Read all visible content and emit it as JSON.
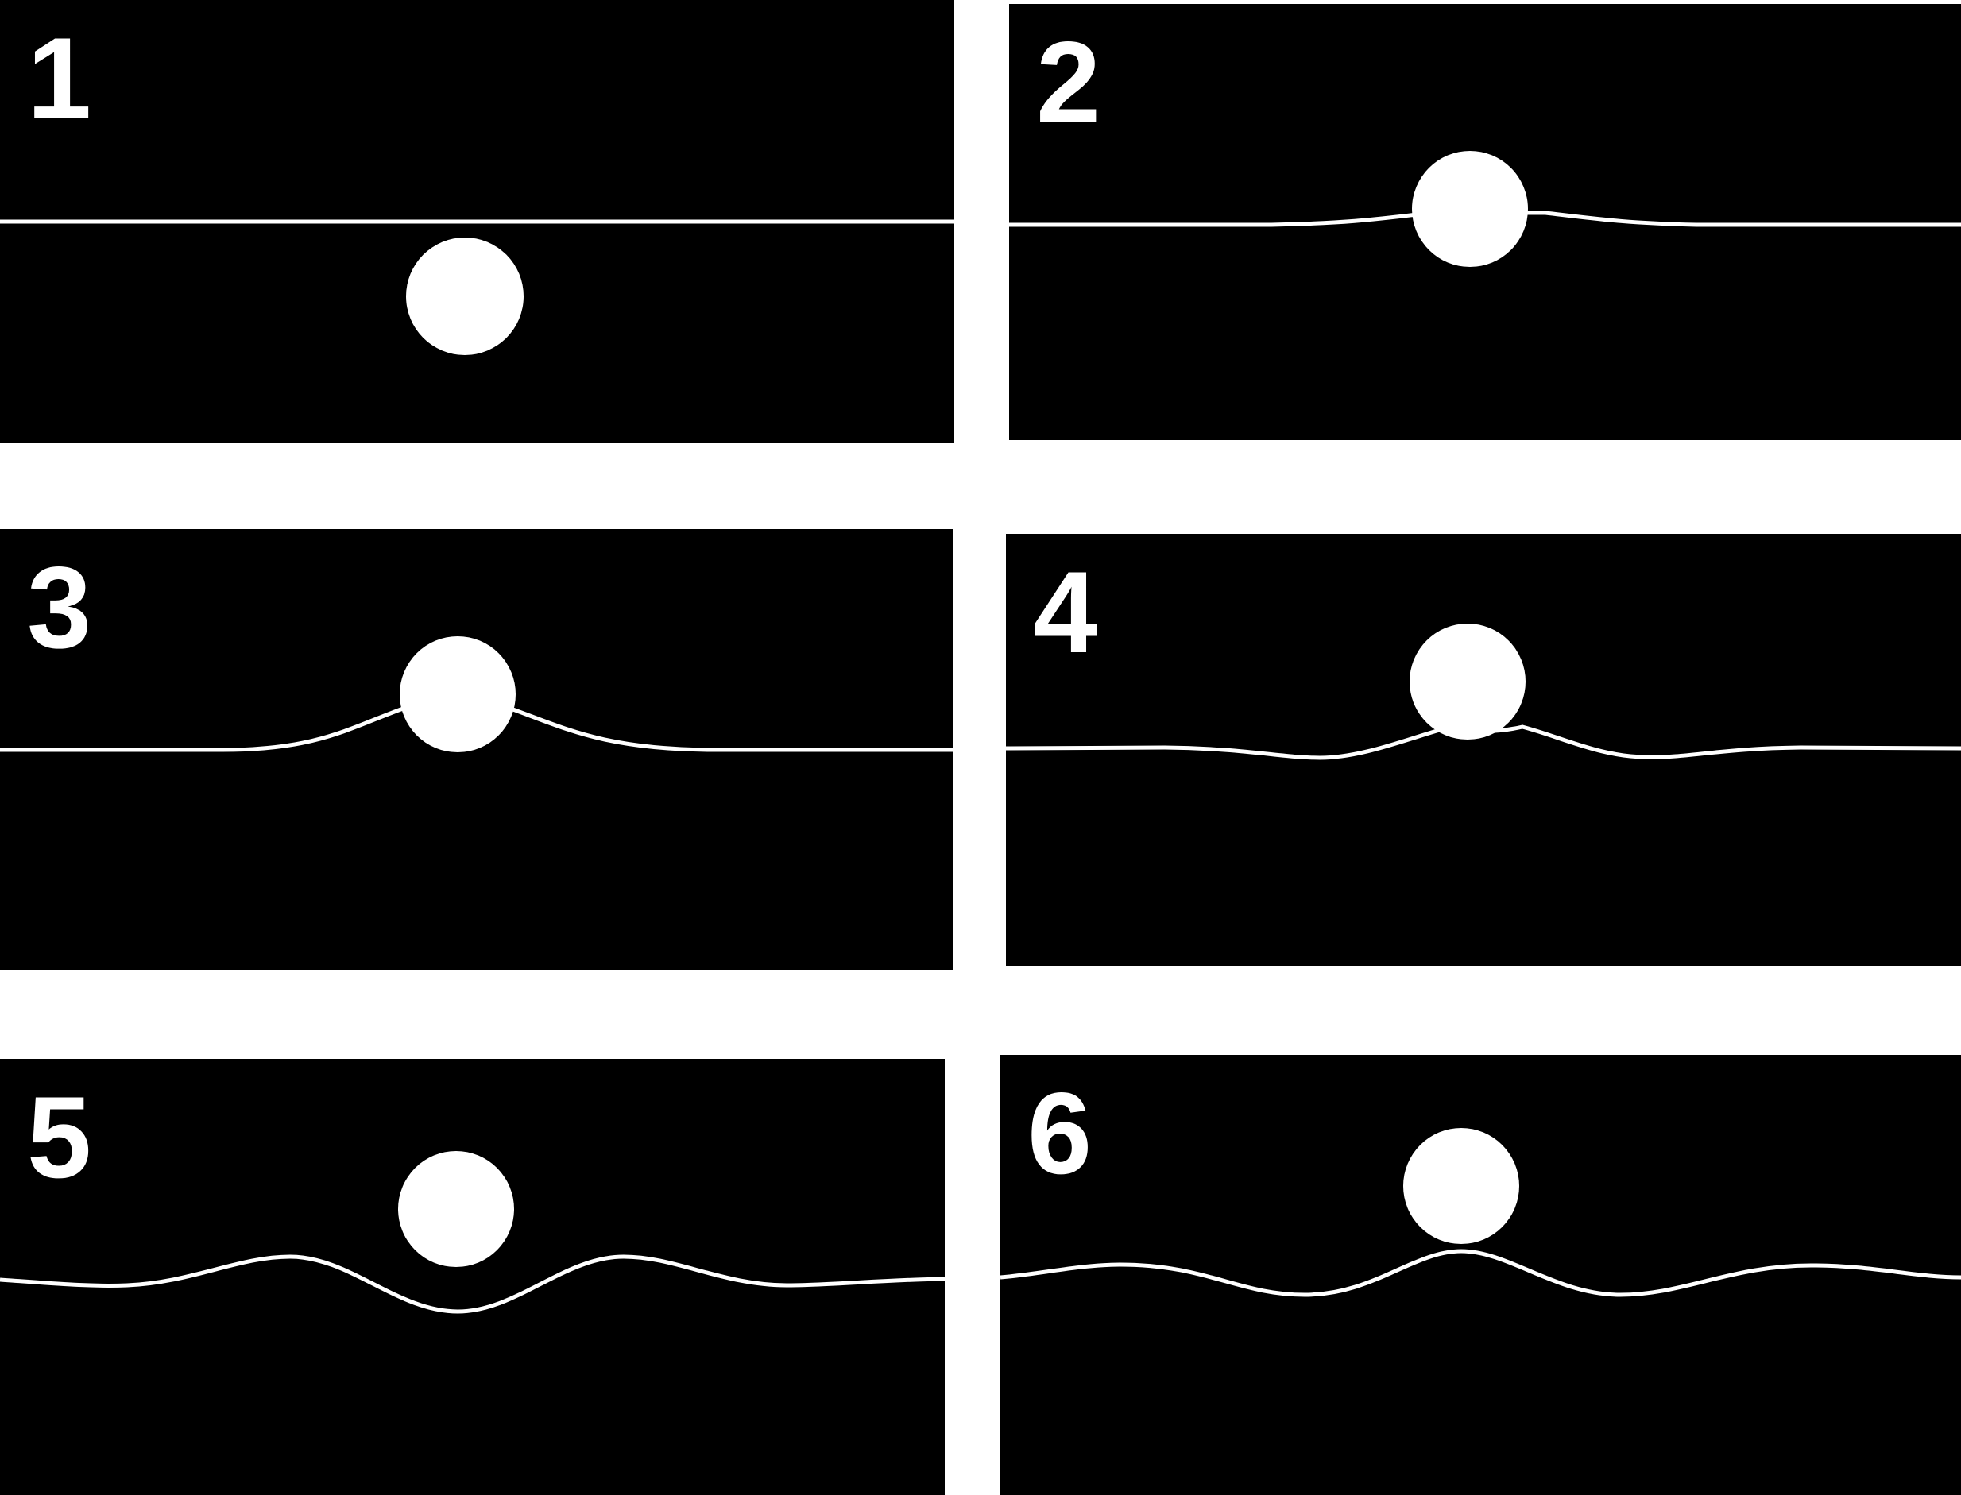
{
  "figure": {
    "background": "#ffffff",
    "panel_background": "#000000",
    "foreground": "#ffffff",
    "panels": [
      {
        "id": "p1",
        "label": "1"
      },
      {
        "id": "p2",
        "label": "2"
      },
      {
        "id": "p3",
        "label": "3"
      },
      {
        "id": "p4",
        "label": "4"
      },
      {
        "id": "p5",
        "label": "5"
      },
      {
        "id": "p6",
        "label": "6"
      }
    ]
  }
}
